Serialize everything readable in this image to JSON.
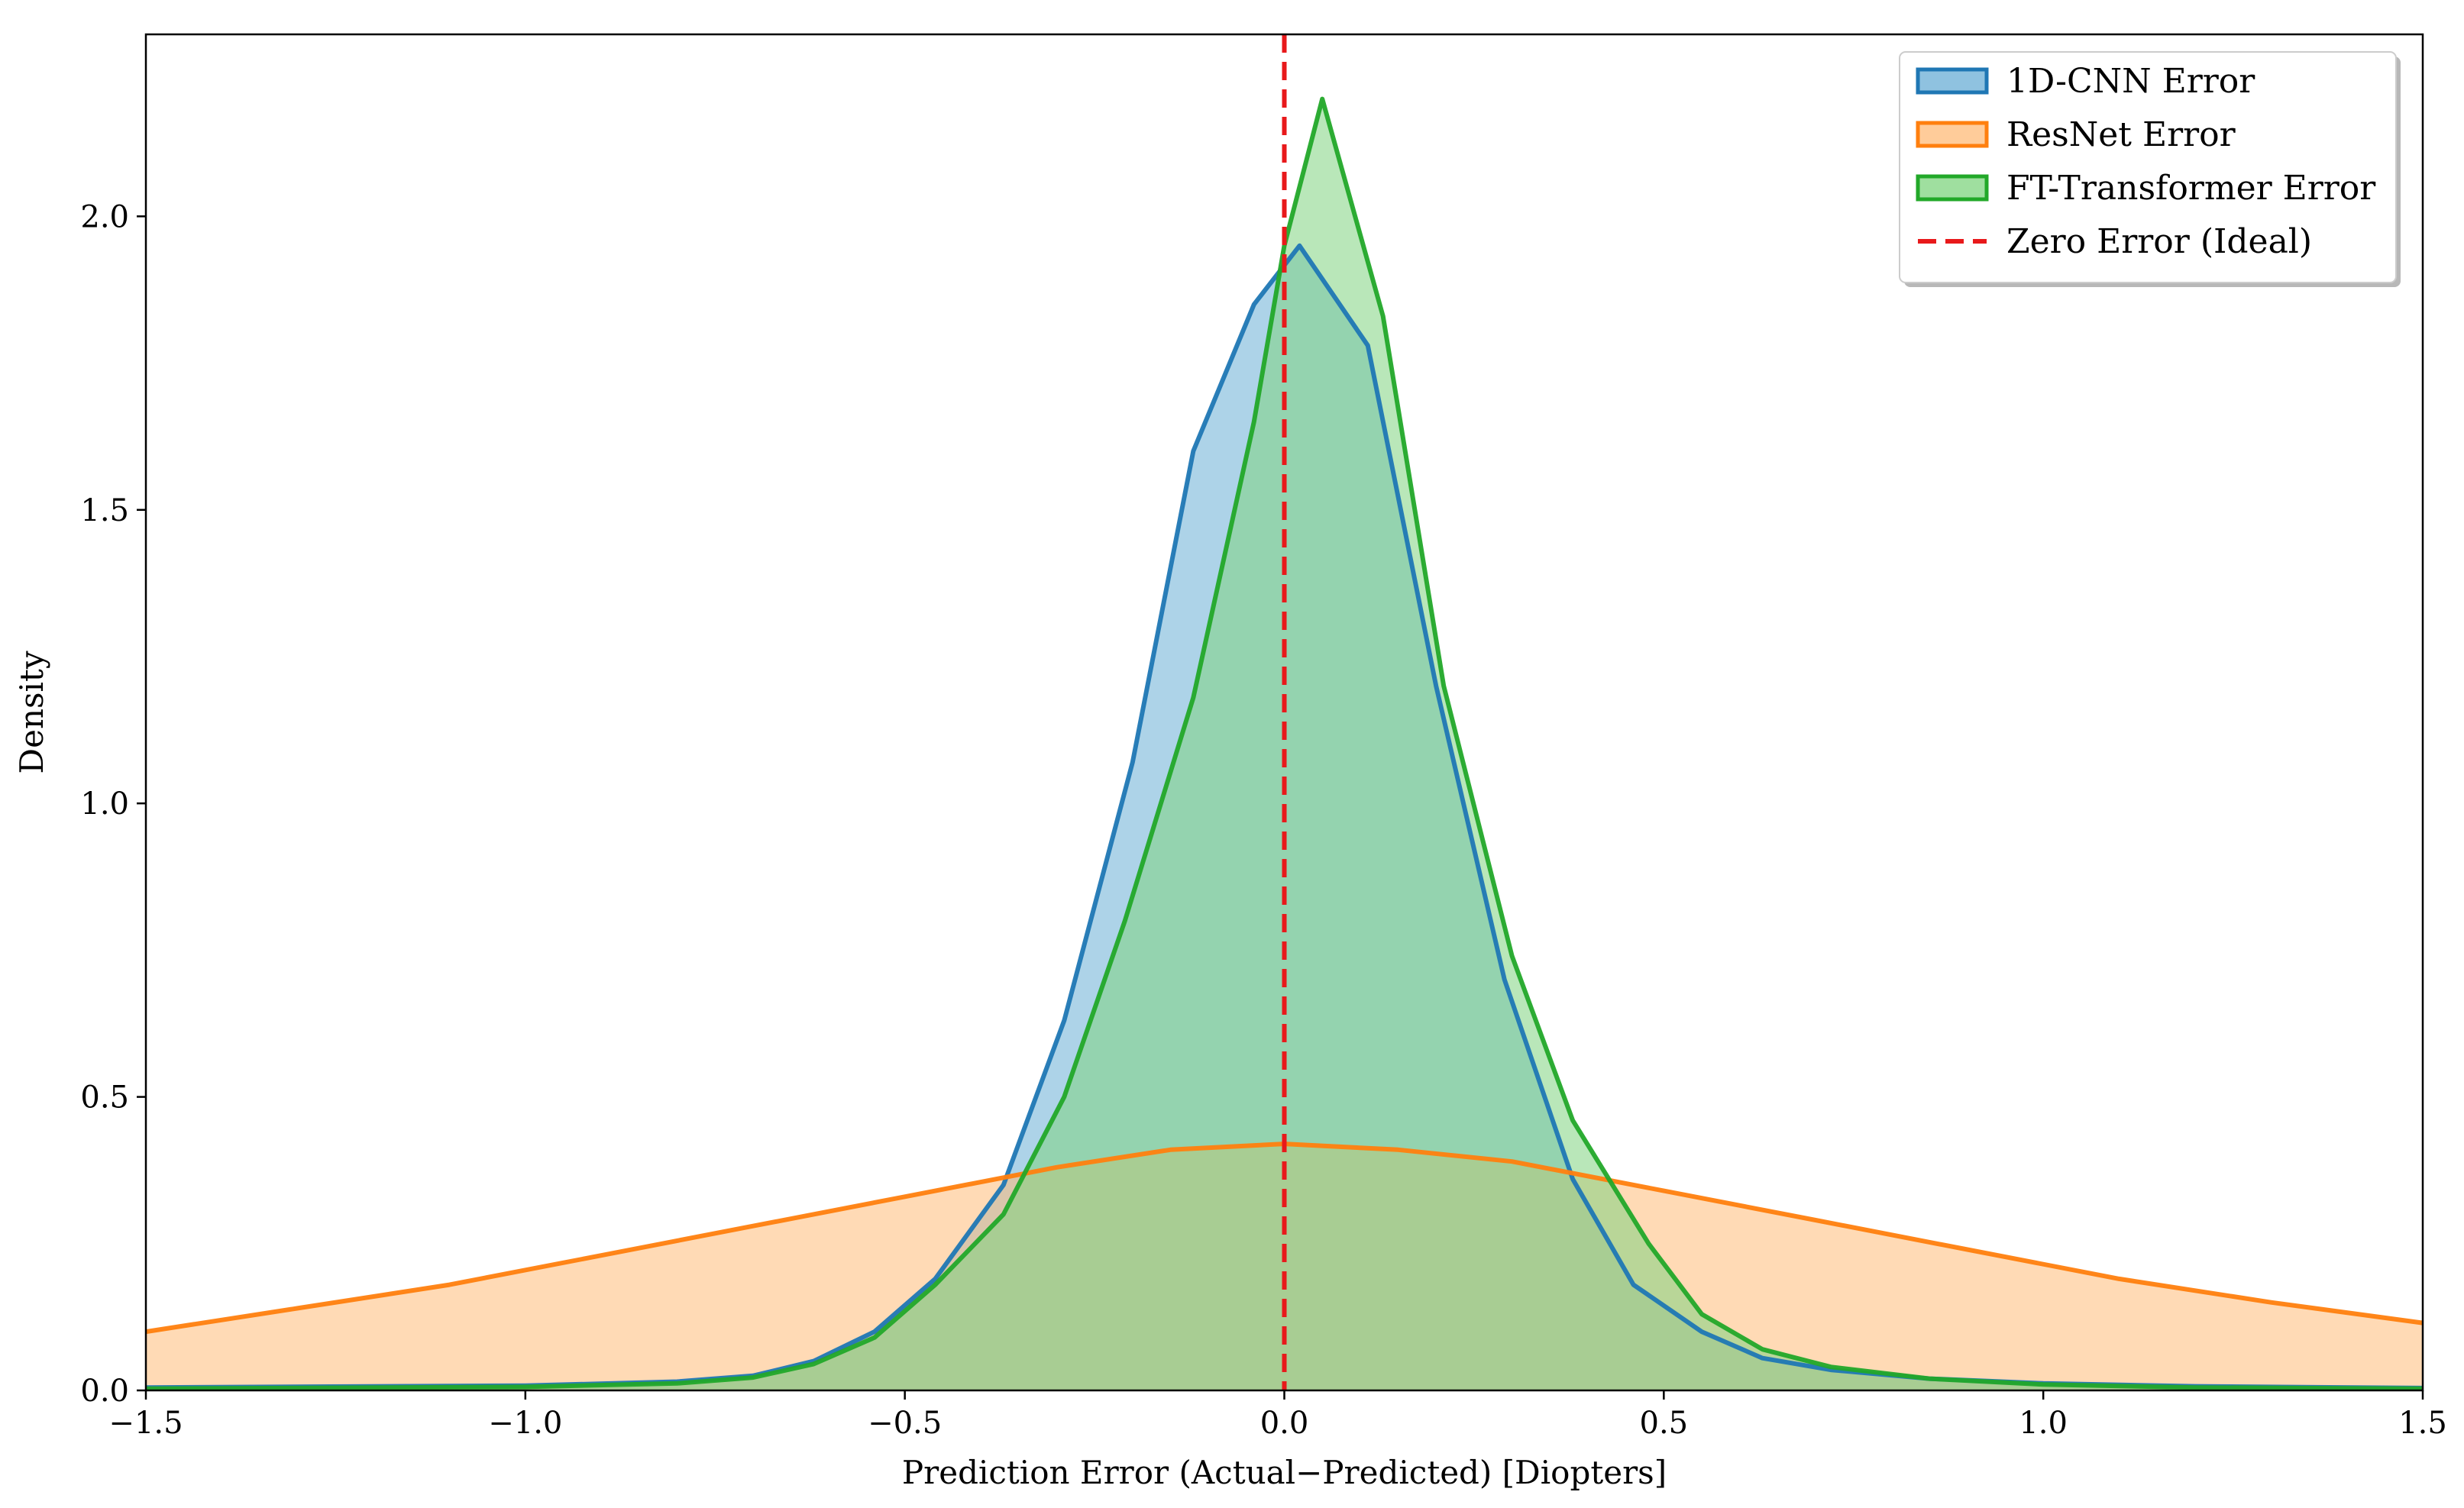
{
  "chart_data": {
    "type": "area",
    "title": "",
    "xlabel": "Prediction Error (Actual−Predicted) [Diopters]",
    "ylabel": "Density",
    "xlim": [
      -1.5,
      1.5
    ],
    "ylim": [
      0,
      2.31
    ],
    "xticks": [
      -1.5,
      -1.0,
      -0.5,
      0.0,
      0.5,
      1.0,
      1.5
    ],
    "xtick_labels": [
      "−1.5",
      "−1.0",
      "−0.5",
      "0.0",
      "0.5",
      "1.0",
      "1.5"
    ],
    "yticks": [
      0.0,
      0.5,
      1.0,
      1.5,
      2.0
    ],
    "ytick_labels": [
      "0.0",
      "0.5",
      "1.0",
      "1.5",
      "2.0"
    ],
    "grid": false,
    "legend_position": "top-right",
    "reference_line": {
      "name": "Zero Error (Ideal)",
      "x": 0.0,
      "color": "#e8191b",
      "style": "dashed"
    },
    "series": [
      {
        "name": "1D-CNN Error",
        "color": "#1f77b4",
        "fill": "#6aaed6",
        "points": [
          [
            -1.5,
            0.005
          ],
          [
            -1.0,
            0.008
          ],
          [
            -0.8,
            0.015
          ],
          [
            -0.7,
            0.025
          ],
          [
            -0.62,
            0.05
          ],
          [
            -0.54,
            0.1
          ],
          [
            -0.46,
            0.19
          ],
          [
            -0.37,
            0.35
          ],
          [
            -0.29,
            0.63
          ],
          [
            -0.2,
            1.07
          ],
          [
            -0.12,
            1.6
          ],
          [
            -0.04,
            1.85
          ],
          [
            0.02,
            1.95
          ],
          [
            0.11,
            1.78
          ],
          [
            0.2,
            1.2
          ],
          [
            0.29,
            0.7
          ],
          [
            0.38,
            0.36
          ],
          [
            0.46,
            0.18
          ],
          [
            0.55,
            0.1
          ],
          [
            0.63,
            0.055
          ],
          [
            0.72,
            0.035
          ],
          [
            0.85,
            0.02
          ],
          [
            1.0,
            0.012
          ],
          [
            1.2,
            0.007
          ],
          [
            1.5,
            0.004
          ]
        ]
      },
      {
        "name": "ResNet Error",
        "color": "#ff7f0e",
        "fill": "#ffbb78",
        "points": [
          [
            -1.5,
            0.1
          ],
          [
            -1.3,
            0.14
          ],
          [
            -1.1,
            0.18
          ],
          [
            -0.9,
            0.23
          ],
          [
            -0.7,
            0.28
          ],
          [
            -0.5,
            0.33
          ],
          [
            -0.3,
            0.38
          ],
          [
            -0.15,
            0.41
          ],
          [
            0.0,
            0.42
          ],
          [
            0.15,
            0.41
          ],
          [
            0.3,
            0.39
          ],
          [
            0.5,
            0.34
          ],
          [
            0.7,
            0.29
          ],
          [
            0.9,
            0.24
          ],
          [
            1.1,
            0.19
          ],
          [
            1.3,
            0.15
          ],
          [
            1.5,
            0.115
          ]
        ]
      },
      {
        "name": "FT-Transformer Error",
        "color": "#22a829",
        "fill": "#7fd47f",
        "points": [
          [
            -1.5,
            0.003
          ],
          [
            -1.0,
            0.006
          ],
          [
            -0.8,
            0.012
          ],
          [
            -0.7,
            0.022
          ],
          [
            -0.62,
            0.045
          ],
          [
            -0.54,
            0.09
          ],
          [
            -0.46,
            0.18
          ],
          [
            -0.37,
            0.3
          ],
          [
            -0.29,
            0.5
          ],
          [
            -0.21,
            0.8
          ],
          [
            -0.12,
            1.18
          ],
          [
            -0.04,
            1.65
          ],
          [
            0.0,
            1.95
          ],
          [
            0.05,
            2.2
          ],
          [
            0.13,
            1.83
          ],
          [
            0.21,
            1.2
          ],
          [
            0.3,
            0.74
          ],
          [
            0.38,
            0.46
          ],
          [
            0.48,
            0.25
          ],
          [
            0.55,
            0.13
          ],
          [
            0.63,
            0.07
          ],
          [
            0.72,
            0.04
          ],
          [
            0.85,
            0.02
          ],
          [
            1.0,
            0.01
          ],
          [
            1.2,
            0.005
          ],
          [
            1.5,
            0.003
          ]
        ]
      }
    ],
    "legend": [
      {
        "label": "1D-CNN Error",
        "kind": "patch",
        "edge": "#1f77b4",
        "face": "#6aaed6"
      },
      {
        "label": "ResNet Error",
        "kind": "patch",
        "edge": "#ff7f0e",
        "face": "#ffbb78"
      },
      {
        "label": "FT-Transformer Error",
        "kind": "patch",
        "edge": "#22a829",
        "face": "#7fd47f"
      },
      {
        "label": "Zero Error (Ideal)",
        "kind": "dashed-line",
        "edge": "#e8191b"
      }
    ]
  }
}
